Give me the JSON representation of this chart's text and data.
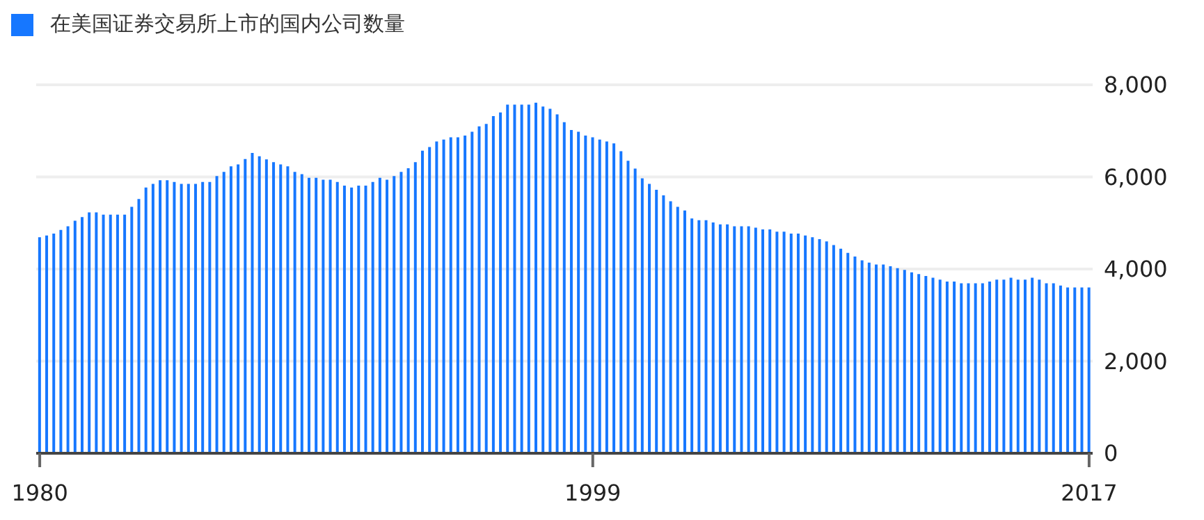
{
  "chart_data": {
    "type": "bar",
    "categories": [
      "1980",
      null,
      null,
      null,
      null,
      null,
      null,
      null,
      null,
      null,
      null,
      null,
      null,
      null,
      null,
      null,
      null,
      null,
      null,
      null,
      null,
      null,
      null,
      null,
      null,
      null,
      null,
      null,
      null,
      null,
      null,
      null,
      null,
      null,
      null,
      null,
      null,
      null,
      null,
      null,
      null,
      null,
      null,
      null,
      null,
      null,
      null,
      null,
      null,
      null,
      null,
      null,
      null,
      null,
      null,
      null,
      null,
      null,
      null,
      null,
      null,
      null,
      null,
      null,
      null,
      null,
      null,
      null,
      null,
      null,
      null,
      null,
      null,
      null,
      null,
      null,
      null,
      null,
      "1999",
      null,
      null,
      null,
      null,
      null,
      null,
      null,
      null,
      null,
      null,
      null,
      null,
      null,
      null,
      null,
      null,
      null,
      null,
      null,
      null,
      null,
      null,
      null,
      null,
      null,
      null,
      null,
      null,
      null,
      null,
      null,
      null,
      null,
      null,
      null,
      null,
      null,
      null,
      null,
      null,
      null,
      null,
      null,
      null,
      null,
      null,
      null,
      null,
      null,
      null,
      null,
      null,
      null,
      null,
      null,
      null,
      null,
      null,
      null,
      null,
      null,
      null,
      null,
      null,
      null,
      null,
      null,
      null,
      null,
      "2017"
    ],
    "series": [
      {
        "name": "在美国证券交易所上市的国内公司数量",
        "color": "#1677ff",
        "values": [
          4690,
          4730,
          4770,
          4850,
          4930,
          5050,
          5130,
          5230,
          5230,
          5180,
          5180,
          5180,
          5180,
          5350,
          5520,
          5770,
          5850,
          5930,
          5930,
          5890,
          5850,
          5850,
          5850,
          5890,
          5890,
          6020,
          6110,
          6230,
          6270,
          6390,
          6520,
          6450,
          6380,
          6320,
          6270,
          6230,
          6110,
          6060,
          5980,
          5980,
          5940,
          5940,
          5890,
          5810,
          5770,
          5810,
          5810,
          5890,
          5980,
          5940,
          6020,
          6110,
          6190,
          6320,
          6570,
          6650,
          6770,
          6810,
          6860,
          6860,
          6900,
          6980,
          7100,
          7150,
          7320,
          7400,
          7570,
          7570,
          7570,
          7570,
          7610,
          7530,
          7480,
          7360,
          7190,
          7020,
          6980,
          6900,
          6860,
          6810,
          6770,
          6730,
          6560,
          6350,
          6180,
          5970,
          5850,
          5720,
          5600,
          5470,
          5350,
          5270,
          5100,
          5060,
          5060,
          5010,
          4970,
          4970,
          4930,
          4930,
          4930,
          4900,
          4860,
          4860,
          4810,
          4810,
          4770,
          4770,
          4730,
          4690,
          4650,
          4600,
          4520,
          4440,
          4350,
          4270,
          4190,
          4140,
          4100,
          4100,
          4060,
          4020,
          3980,
          3930,
          3890,
          3850,
          3810,
          3770,
          3730,
          3730,
          3690,
          3690,
          3690,
          3690,
          3730,
          3770,
          3770,
          3810,
          3770,
          3770,
          3810,
          3770,
          3690,
          3690,
          3640,
          3600,
          3600,
          3600,
          3600
        ]
      }
    ],
    "ylim": [
      0,
      8000
    ],
    "yticks": [
      0,
      {
        "value": 2000,
        "label": "2,000"
      },
      {
        "value": 4000,
        "label": "4,000"
      },
      {
        "value": 6000,
        "label": "6,000"
      },
      {
        "value": 8000,
        "label": "8,000"
      }
    ],
    "grid": "y",
    "legend": "top left"
  }
}
